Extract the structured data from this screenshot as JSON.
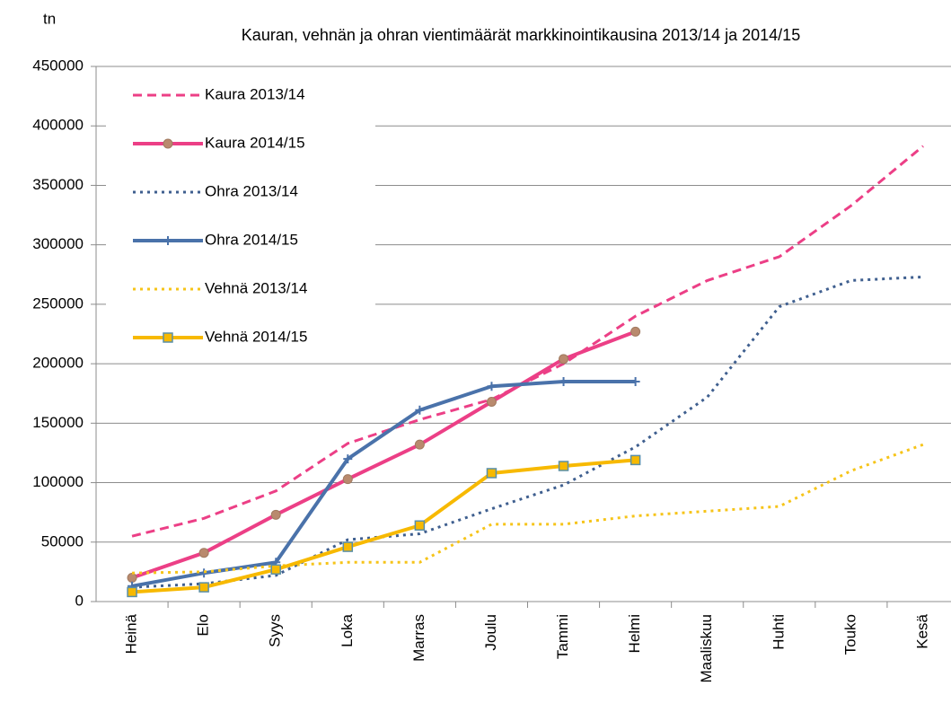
{
  "chart_data": {
    "type": "line",
    "title": "Kauran, vehnän ja ohran vientimäärät markkinointikausina 2013/14 ja 2014/15",
    "y_label": "tn",
    "categories": [
      "Heinä",
      "Elo",
      "Syys",
      "Loka",
      "Marras",
      "Joulu",
      "Tammi",
      "Helmi",
      "Maaliskuu",
      "Huhti",
      "Touko",
      "Kesä"
    ],
    "ylim": [
      0,
      450000
    ],
    "yticks": [
      0,
      50000,
      100000,
      150000,
      200000,
      250000,
      300000,
      350000,
      400000,
      450000
    ],
    "grid": true,
    "legend": "upper left",
    "series": [
      {
        "name": "Kaura 2013/14",
        "color": "#ec3f86",
        "style": "dashed",
        "marker": "none",
        "values": [
          55000,
          70000,
          93000,
          133000,
          153000,
          170000,
          200000,
          240000,
          270000,
          290000,
          333000,
          383000
        ]
      },
      {
        "name": "Kaura 2014/15",
        "color": "#ec3f86",
        "style": "solid",
        "marker": "circle",
        "values": [
          20000,
          41000,
          73000,
          103000,
          132000,
          168000,
          204000,
          227000,
          null,
          null,
          null,
          null
        ]
      },
      {
        "name": "Ohra 2013/14",
        "color": "#3f5f8f",
        "style": "dotted",
        "marker": "none",
        "values": [
          12000,
          15000,
          22000,
          52000,
          57000,
          78000,
          98000,
          130000,
          172000,
          248000,
          270000,
          273000
        ]
      },
      {
        "name": "Ohra 2014/15",
        "color": "#4a72aa",
        "style": "solid",
        "marker": "plus",
        "values": [
          13000,
          24000,
          33000,
          120000,
          161000,
          181000,
          185000,
          185000,
          null,
          null,
          null,
          null
        ]
      },
      {
        "name": "Vehnä 2013/14",
        "color": "#f6c419",
        "style": "dotted",
        "marker": "none",
        "values": [
          24000,
          25000,
          30000,
          33000,
          33000,
          65000,
          65000,
          72000,
          76000,
          80000,
          110000,
          132000
        ]
      },
      {
        "name": "Vehnä 2014/15",
        "color": "#f7b900",
        "style": "solid",
        "marker": "square",
        "values": [
          8000,
          12000,
          27000,
          46000,
          64000,
          108000,
          114000,
          119000,
          null,
          null,
          null,
          null
        ]
      }
    ]
  }
}
